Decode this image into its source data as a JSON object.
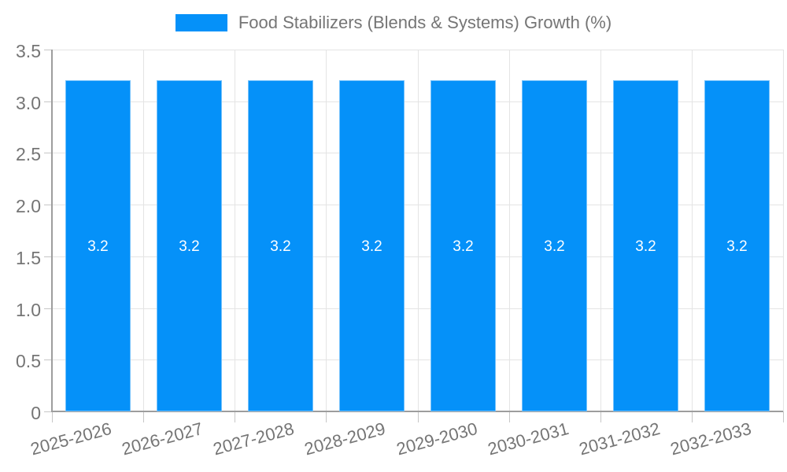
{
  "legend": {
    "label": "Food Stabilizers (Blends & Systems) Growth (%)"
  },
  "colors": {
    "bar": "#0591F9",
    "bar_border": "rgba(255,255,255,0.45)",
    "grid": "#e4e4e4",
    "axis": "#9d9d9d",
    "tick": "#c6c6c6",
    "axis_text": "#757575",
    "bar_label_text": "#ffffff",
    "background": "#ffffff"
  },
  "chart_data": {
    "type": "bar",
    "title": "Food Stabilizers (Blends & Systems) Growth (%)",
    "categories": [
      "2025-2026",
      "2026-2027",
      "2027-2028",
      "2028-2029",
      "2029-2030",
      "2030-2031",
      "2031-2032",
      "2032-2033"
    ],
    "values": [
      3.2,
      3.2,
      3.2,
      3.2,
      3.2,
      3.2,
      3.2,
      3.2
    ],
    "bar_labels": [
      "3.2",
      "3.2",
      "3.2",
      "3.2",
      "3.2",
      "3.2",
      "3.2",
      "3.2"
    ],
    "xlabel": "",
    "ylabel": "",
    "ylim": [
      0,
      3.5
    ],
    "yticks": [
      0,
      0.5,
      1,
      1.5,
      2,
      2.5,
      3,
      3.5
    ],
    "ytick_labels": [
      "0",
      "0.5",
      "1.0",
      "1.5",
      "2.0",
      "2.5",
      "3.0",
      "3.5"
    ],
    "grid": true,
    "legend_position": "top"
  }
}
